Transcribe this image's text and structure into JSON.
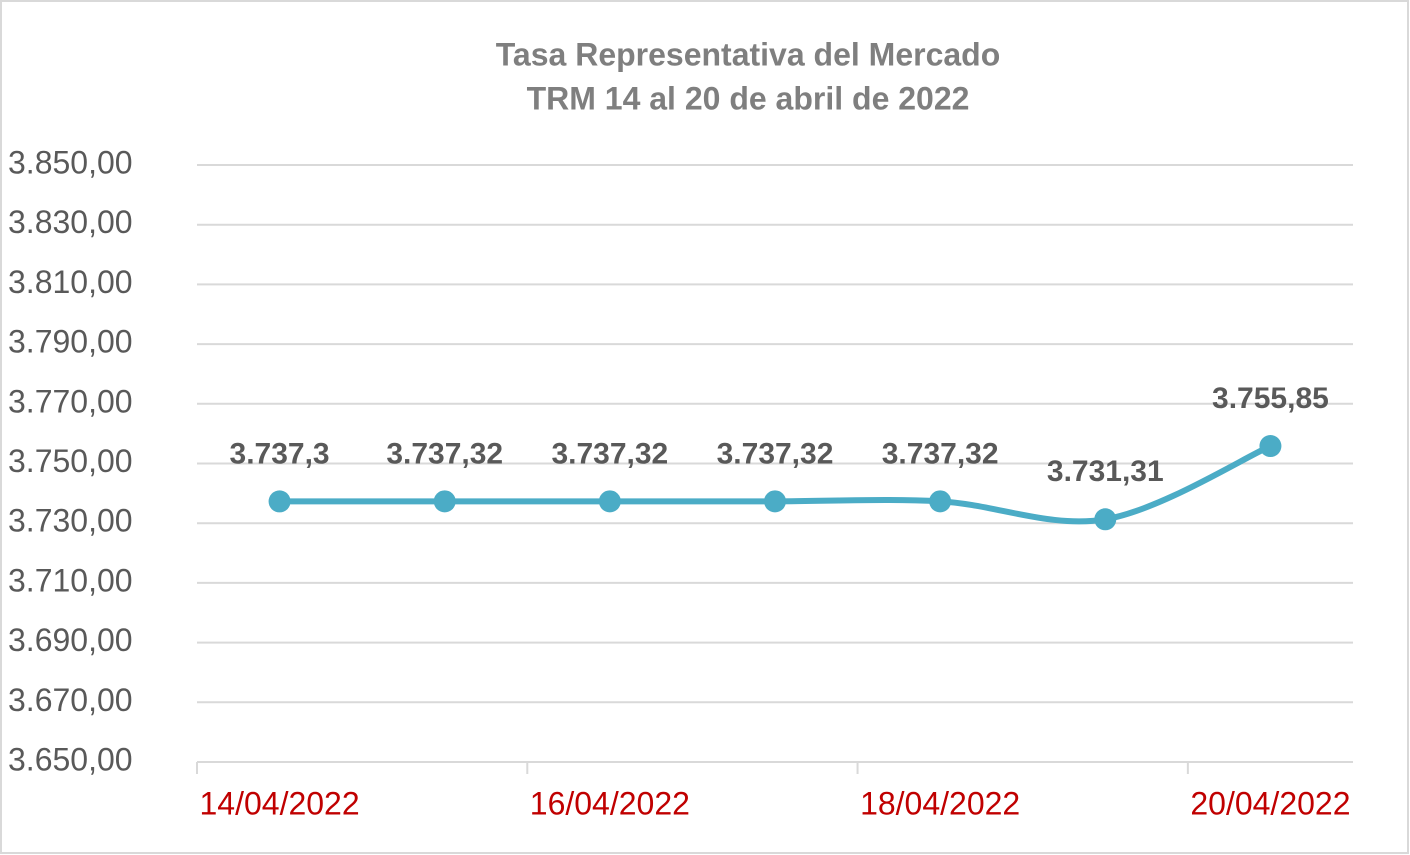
{
  "chart_data": {
    "type": "line",
    "title": [
      "Tasa Representativa del Mercado",
      "TRM  14 al 20 de abril de 2022"
    ],
    "categories": [
      "14/04/2022",
      null,
      "16/04/2022",
      null,
      "18/04/2022",
      null,
      "20/04/2022"
    ],
    "series": [
      {
        "color": "#4bacc6",
        "values": [
          3737.3,
          3737.32,
          3737.32,
          3737.32,
          3737.32,
          3731.31,
          3755.85
        ],
        "value_labels": [
          "3.737,3",
          "3.737,32",
          "3.737,32",
          "3.737,32",
          "3.737,32",
          "3.731,31",
          "3.755,85"
        ]
      }
    ],
    "ylim": [
      3650,
      3850
    ],
    "yticks": [
      {
        "value": 3650,
        "label": "3.650,00"
      },
      {
        "value": 3670,
        "label": "3.670,00"
      },
      {
        "value": 3690,
        "label": "3.690,00"
      },
      {
        "value": 3710,
        "label": "3.710,00"
      },
      {
        "value": 3730,
        "label": "3.730,00"
      },
      {
        "value": 3750,
        "label": "3.750,00"
      },
      {
        "value": 3770,
        "label": "3.770,00"
      },
      {
        "value": 3790,
        "label": "3.790,00"
      },
      {
        "value": 3810,
        "label": "3.810,00"
      },
      {
        "value": 3830,
        "label": "3.830,00"
      },
      {
        "value": 3850,
        "label": "3.850,00"
      }
    ],
    "grid": true,
    "smooth": true
  }
}
